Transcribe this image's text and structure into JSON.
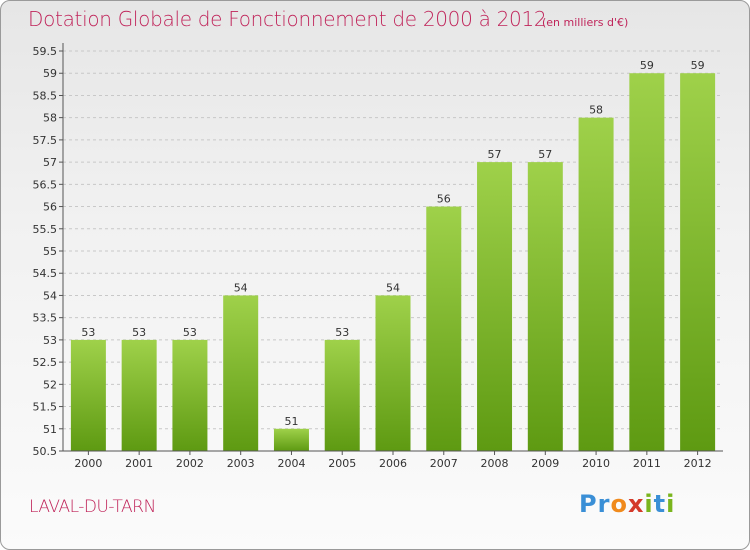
{
  "title": "Dotation Globale de Fonctionnement de 2000 à 2012",
  "subtitle": "(en milliers d'€)",
  "commune": "LAVAL-DU-TARN",
  "logo": {
    "letters": [
      "P",
      "r",
      "o",
      "x",
      "i",
      "t",
      "i"
    ],
    "colors": [
      "#3a8fd6",
      "#3a8fd6",
      "#f08a1c",
      "#d43a2a",
      "#7ab51d",
      "#3a8fd6",
      "#7ab51d"
    ]
  },
  "colors": {
    "title": "#c0245a",
    "bar_top": "#9fd14a",
    "bar_bottom": "#5e9a12",
    "grid": "#c8c8c8"
  },
  "chart_data": {
    "type": "bar",
    "categories": [
      "2000",
      "2001",
      "2002",
      "2003",
      "2004",
      "2005",
      "2006",
      "2007",
      "2008",
      "2009",
      "2010",
      "2011",
      "2012"
    ],
    "values": [
      53,
      53,
      53,
      54,
      51,
      53,
      54,
      56,
      57,
      57,
      58,
      59,
      59
    ],
    "ylim": [
      50.5,
      59.5
    ],
    "yticks": [
      "50.5",
      "51",
      "51.5",
      "52",
      "52.5",
      "53",
      "53.5",
      "54",
      "54.5",
      "55",
      "55.5",
      "56",
      "56.5",
      "57",
      "57.5",
      "58",
      "58.5",
      "59",
      "59.5"
    ],
    "grid": true,
    "data_labels": true
  }
}
